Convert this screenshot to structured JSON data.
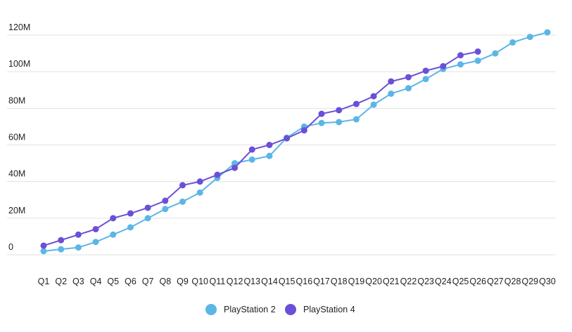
{
  "chart_data": {
    "type": "line",
    "categories": [
      "Q1",
      "Q2",
      "Q3",
      "Q4",
      "Q5",
      "Q6",
      "Q7",
      "Q8",
      "Q9",
      "Q10",
      "Q11",
      "Q12",
      "Q13",
      "Q14",
      "Q15",
      "Q16",
      "Q17",
      "Q18",
      "Q19",
      "Q20",
      "Q21",
      "Q22",
      "Q23",
      "Q24",
      "Q25",
      "Q26",
      "Q27",
      "Q28",
      "Q29",
      "Q30"
    ],
    "series": [
      {
        "name": "PlayStation 2",
        "color": "#5bb6e6",
        "values": [
          2,
          3,
          4,
          7,
          11,
          15,
          20,
          25,
          29,
          34,
          42,
          50,
          52,
          54,
          64,
          70,
          72,
          72.5,
          74,
          82,
          88,
          91,
          96,
          101.5,
          104,
          106,
          110,
          116,
          119,
          121.5
        ]
      },
      {
        "name": "PlayStation 4",
        "color": "#6b4fd8",
        "values": [
          5,
          8,
          11,
          14,
          20,
          22.6,
          25.7,
          29.5,
          38,
          40,
          43.7,
          47.5,
          57.5,
          60,
          63.6,
          68,
          77,
          79,
          82.4,
          86.6,
          94.7,
          97,
          100.5,
          103,
          109,
          111,
          null,
          null,
          null,
          null
        ]
      }
    ],
    "ylim": [
      0,
      120
    ],
    "yticks": [
      {
        "value": 0,
        "label": "0"
      },
      {
        "value": 20,
        "label": "20M"
      },
      {
        "value": 40,
        "label": "40M"
      },
      {
        "value": 60,
        "label": "60M"
      },
      {
        "value": 80,
        "label": "80M"
      },
      {
        "value": 100,
        "label": "100M"
      },
      {
        "value": 120,
        "label": "120M"
      }
    ],
    "grid": true,
    "legend": "bottom"
  }
}
